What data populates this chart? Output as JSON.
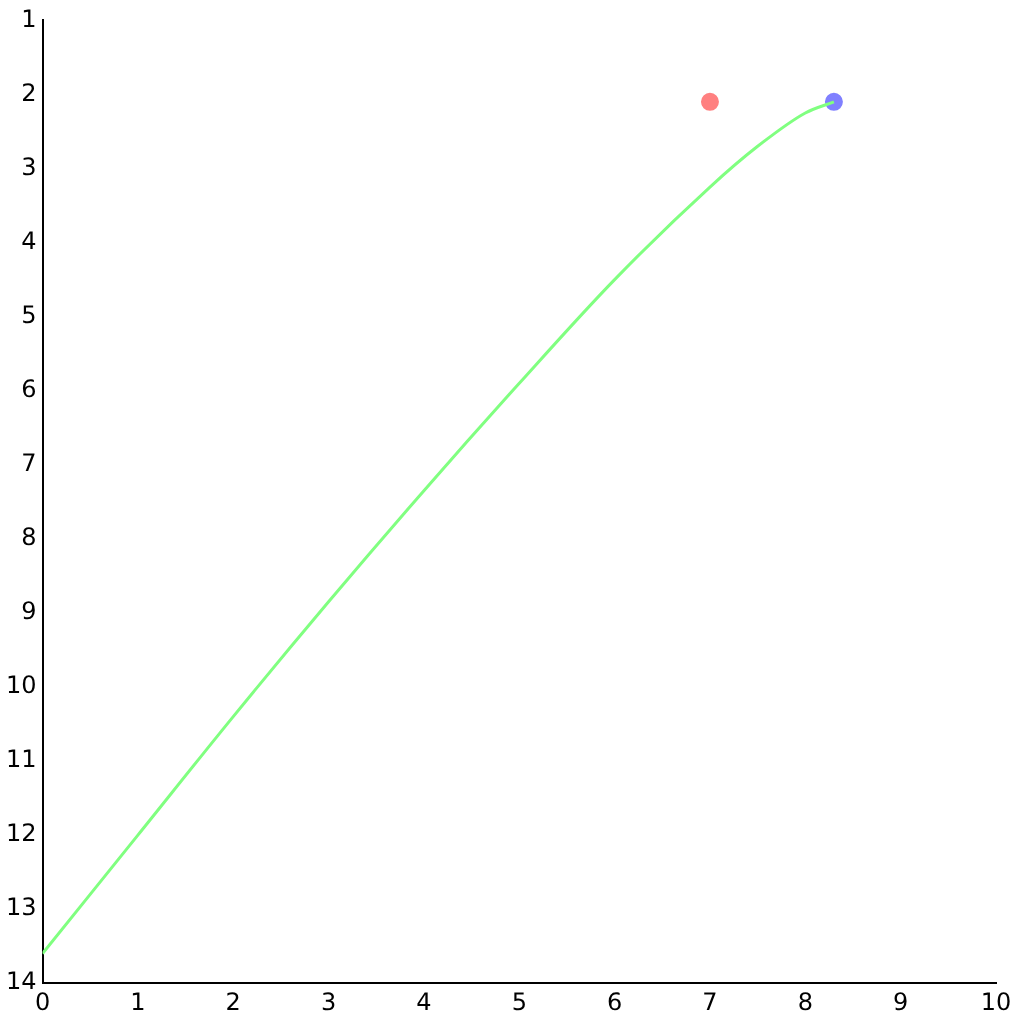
{
  "chart_data": {
    "type": "line",
    "xlim": [
      0,
      10
    ],
    "xticks": [
      0,
      1,
      2,
      3,
      4,
      5,
      6,
      7,
      8,
      9,
      10
    ],
    "ylim": [
      14,
      1
    ],
    "yticks": [
      1,
      2,
      3,
      4,
      5,
      6,
      7,
      8,
      9,
      10,
      11,
      12,
      13,
      14
    ],
    "grid": false,
    "legend": false,
    "series": [
      {
        "color": "#80ff80",
        "marker": "none",
        "x": [
          0,
          1,
          2,
          3,
          4,
          5,
          6,
          7,
          7.5,
          8,
          8.3
        ],
        "values": [
          13.6,
          12.0,
          10.4,
          8.85,
          7.35,
          5.9,
          4.5,
          3.25,
          2.7,
          2.25,
          2.1
        ]
      },
      {
        "type": "scatter",
        "color": "#ff8080",
        "marker": "circle",
        "x": [
          7
        ],
        "values": [
          2.1
        ]
      },
      {
        "type": "scatter",
        "color": "#8080ff",
        "marker": "circle",
        "x": [
          8.3
        ],
        "values": [
          2.1
        ]
      }
    ]
  }
}
